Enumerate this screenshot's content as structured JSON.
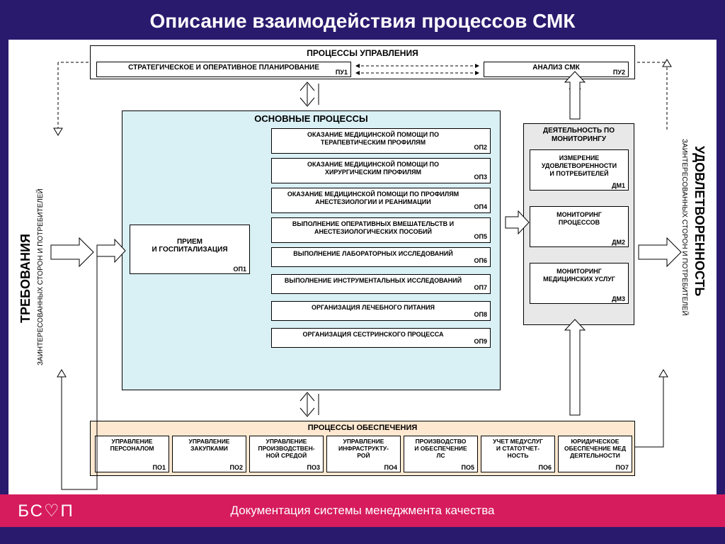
{
  "header": {
    "title": "Описание взаимодействия процессов СМК"
  },
  "footer": {
    "logo": "БС♡П",
    "text": "Документация системы менеджмента качества"
  },
  "sidebars": {
    "left_main": "ТРЕБОВАНИЯ",
    "left_sub": "ЗАИНТЕРЕСОВАННЫХ СТОРОН И ПОТРЕБИТЕЛЕЙ",
    "right_main": "УДОВЛЕТВОРЕННОСТЬ",
    "right_sub": "ЗАИНТЕРЕСОВАННЫХ СТОРОН И ПОТРЕБИТЕЛЕЙ"
  },
  "sections": {
    "management": {
      "title": "ПРОЦЕССЫ  УПРАВЛЕНИЯ",
      "bg": "#ffffff",
      "items": [
        {
          "label": "СТРАТЕГИЧЕСКОЕ И ОПЕРАТИВНОЕ ПЛАНИРОВАНИЕ",
          "code": "ПУ1"
        },
        {
          "label": "АНАЛИЗ СМК",
          "code": "ПУ2"
        }
      ]
    },
    "main": {
      "title": "ОСНОВНЫЕ ПРОЦЕССЫ",
      "bg": "#d9f0f5",
      "reception": {
        "label": "ПРИЕМ\nИ ГОСПИТАЛИЗАЦИЯ",
        "code": "ОП1"
      },
      "items": [
        {
          "label": "ОКАЗАНИЕ МЕДИЦИНСКОЙ ПОМОЩИ ПО\nТЕРАПЕВТИЧЕСКИМ ПРОФИЛЯМ",
          "code": "ОП2"
        },
        {
          "label": "ОКАЗАНИЕ МЕДИЦИНСКОЙ ПОМОЩИ ПО\nХИРУРГИЧЕСКИМ  ПРОФИЛЯМ",
          "code": "ОП3"
        },
        {
          "label": "ОКАЗАНИЕ МЕДИЦИНСКОЙ ПОМОЩИ ПО ПРОФИЛЯМ\nАНЕСТЕЗИОЛОГИИ И РЕАНИМАЦИИ",
          "code": "ОП4"
        },
        {
          "label": "ВЫПОЛНЕНИЕ  ОПЕРАТИВНЫХ ВМЕШАТЕЛЬСТВ И\nАНЕСТЕЗИОЛОГИЧЕСКИХ ПОСОБИЙ",
          "code": "ОП5"
        },
        {
          "label": "ВЫПОЛНЕНИЕ ЛАБОРАТОРНЫХ ИССЛЕДОВАНИЙ",
          "code": "ОП6"
        },
        {
          "label": "ВЫПОЛНЕНИЕ ИНСТРУМЕНТАЛЬНЫХ ИССЛЕДОВАНИЙ",
          "code": "ОП7"
        },
        {
          "label": "ОРГАНИЗАЦИЯ ЛЕЧЕБНОГО ПИТАНИЯ",
          "code": "ОП8"
        },
        {
          "label": "ОРГАНИЗАЦИЯ СЕСТРИНСКОГО ПРОЦЕССА",
          "code": "ОП9"
        }
      ]
    },
    "monitoring": {
      "title": "ДЕЯТЕЛЬНОСТЬ ПО\nМОНИТОРИНГУ",
      "bg": "#e8e8e8",
      "items": [
        {
          "label": "ИЗМЕРЕНИЕ\nУДОВЛЕТВОРЕННОСТИ\nИ ПОТРЕБИТЕЛЕЙ",
          "code": "ДМ1"
        },
        {
          "label": "МОНИТОРИНГ\nПРОЦЕССОВ",
          "code": "ДМ2"
        },
        {
          "label": "МОНИТОРИНГ\nМЕДИЦИНСКИХ УСЛУГ",
          "code": "ДМ3"
        }
      ]
    },
    "support": {
      "title": "ПРОЦЕССЫ ОБЕСПЕЧЕНИЯ",
      "bg": "#ffe8d0",
      "items": [
        {
          "label": "УПРАВЛЕНИЕ\nПЕРСОНАЛОМ",
          "code": "ПО1"
        },
        {
          "label": "УПРАВЛЕНИЕ\nЗАКУПКАМИ",
          "code": "ПО2"
        },
        {
          "label": "УПРАВЛЕНИЕ\nПРОИЗВОДСТВЕН-\nНОЙ СРЕДОЙ",
          "code": "ПО3"
        },
        {
          "label": "УПРАВЛЕНИЕ\nИНФРАСТРУКТУ-\nРОЙ",
          "code": "ПО4"
        },
        {
          "label": "ПРОИЗВОДСТВО\nИ ОБЕСПЕЧЕНИЕ\nЛС",
          "code": "ПО5"
        },
        {
          "label": "УЧЕТ МЕДУСЛУГ\nИ СТАТОТЧЕТ-\nНОСТЬ",
          "code": "ПО6"
        },
        {
          "label": "ЮРИДИЧЕСКОЕ\nОБЕСПЕЧЕНИЕ МЕД\nДЕЯТЕЛЬНОСТИ",
          "code": "ПО7"
        }
      ]
    }
  },
  "colors": {
    "page_bg": "#2a1a6e",
    "footer_bg": "#d61c5c",
    "canvas_bg": "#ffffff"
  }
}
